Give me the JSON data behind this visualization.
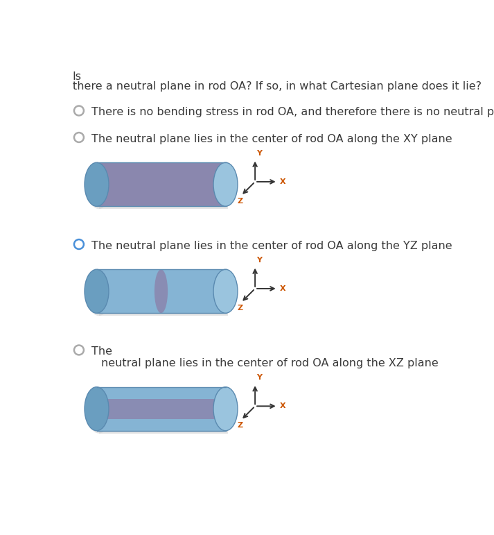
{
  "title_line1": "Is",
  "title_line2": "there a neutral plane in rod OA? If so, in what Cartesian plane does it lie?",
  "options": [
    {
      "text": "There is no bending stress in rod OA, and therefore there is no neutral plane.",
      "selected": false,
      "has_diagram": false,
      "circle_color": "#aaaaaa"
    },
    {
      "text": "The neutral plane lies in the center of rod OA along the XY plane",
      "selected": false,
      "has_diagram": true,
      "diagram_type": "XY",
      "circle_color": "#aaaaaa"
    },
    {
      "text": "The neutral plane lies in the center of rod OA along the YZ plane",
      "selected": true,
      "has_diagram": true,
      "diagram_type": "YZ",
      "circle_color": "#4a90d9"
    },
    {
      "text1": "The",
      "text2": "neutral plane lies in the center of rod OA along the XZ plane",
      "selected": false,
      "has_diagram": true,
      "diagram_type": "XZ",
      "circle_color": "#aaaaaa"
    }
  ],
  "bg_color": "#ffffff",
  "text_color": "#3a3a3a",
  "cylinder_body_color": "#85b4d4",
  "cylinder_end_left_color": "#6a9ec0",
  "cylinder_end_right_color": "#9ac4de",
  "plane_color": "#8b7fa8",
  "axis_color": "#333333",
  "axis_label_color": "#cc5500"
}
